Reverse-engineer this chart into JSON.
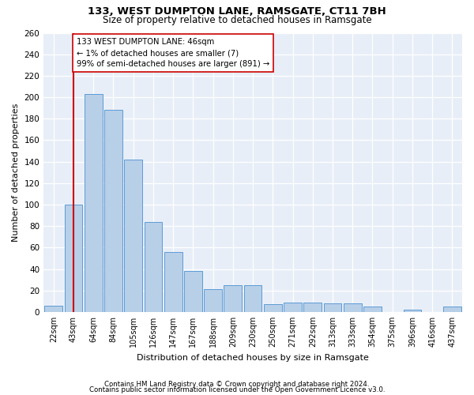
{
  "title1": "133, WEST DUMPTON LANE, RAMSGATE, CT11 7BH",
  "title2": "Size of property relative to detached houses in Ramsgate",
  "xlabel": "Distribution of detached houses by size in Ramsgate",
  "ylabel": "Number of detached properties",
  "categories": [
    "22sqm",
    "43sqm",
    "64sqm",
    "84sqm",
    "105sqm",
    "126sqm",
    "147sqm",
    "167sqm",
    "188sqm",
    "209sqm",
    "230sqm",
    "250sqm",
    "271sqm",
    "292sqm",
    "313sqm",
    "333sqm",
    "354sqm",
    "375sqm",
    "396sqm",
    "416sqm",
    "437sqm"
  ],
  "values": [
    6,
    100,
    203,
    188,
    142,
    84,
    56,
    38,
    21,
    25,
    25,
    7,
    9,
    9,
    8,
    8,
    5,
    0,
    2,
    0,
    5
  ],
  "bar_color": "#b8cfe8",
  "bar_edge_color": "#5b9bd5",
  "vline_x": 1,
  "vline_color": "#cc0000",
  "annotation_text": "133 WEST DUMPTON LANE: 46sqm\n← 1% of detached houses are smaller (7)\n99% of semi-detached houses are larger (891) →",
  "annotation_box_color": "#ffffff",
  "annotation_box_edge": "#cc0000",
  "ylim": [
    0,
    260
  ],
  "yticks": [
    0,
    20,
    40,
    60,
    80,
    100,
    120,
    140,
    160,
    180,
    200,
    220,
    240,
    260
  ],
  "footer1": "Contains HM Land Registry data © Crown copyright and database right 2024.",
  "footer2": "Contains public sector information licensed under the Open Government Licence v3.0.",
  "fig_bg_color": "#ffffff",
  "plot_bg_color": "#e8eef8"
}
